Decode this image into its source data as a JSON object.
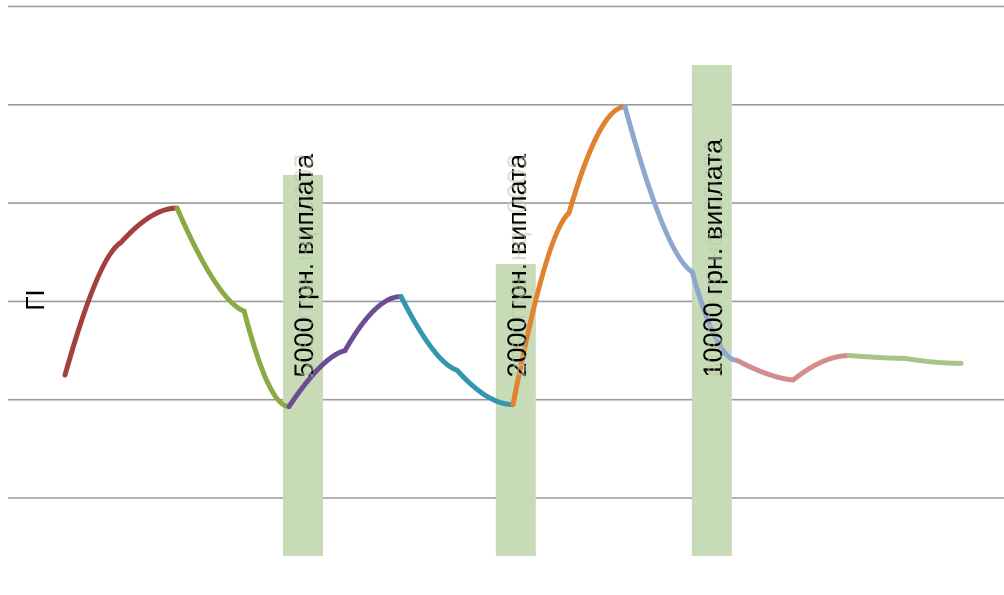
{
  "chart_data": {
    "type": "line",
    "title": "",
    "xlabel": "",
    "ylabel": "ГІ",
    "xlim": [
      0,
      8.5
    ],
    "ylim": [
      0,
      6
    ],
    "grid": true,
    "legend": "none",
    "gridline_color": "#9a9a9a",
    "segments": [
      {
        "color": "#a33f3c",
        "points": [
          [
            0,
            1.25
          ],
          [
            0.5,
            2.6
          ],
          [
            1,
            2.95
          ]
        ]
      },
      {
        "color": "#8aaa46",
        "points": [
          [
            1,
            2.95
          ],
          [
            1.6,
            1.9
          ],
          [
            2,
            0.93
          ]
        ]
      },
      {
        "color": "#6d4c94",
        "points": [
          [
            2,
            0.93
          ],
          [
            2.5,
            1.5
          ],
          [
            3,
            2.05
          ]
        ]
      },
      {
        "color": "#3296b0",
        "points": [
          [
            3,
            2.05
          ],
          [
            3.5,
            1.3
          ],
          [
            4,
            0.95
          ]
        ]
      },
      {
        "color": "#e0822f",
        "points": [
          [
            4,
            0.95
          ],
          [
            4.5,
            2.9
          ],
          [
            5,
            3.98
          ]
        ]
      },
      {
        "color": "#8ea7cf",
        "points": [
          [
            5,
            3.98
          ],
          [
            5.6,
            2.3
          ],
          [
            6,
            1.4
          ]
        ]
      },
      {
        "color": "#d38d8c",
        "points": [
          [
            6,
            1.4
          ],
          [
            6.5,
            1.2
          ],
          [
            7,
            1.45
          ]
        ]
      },
      {
        "color": "#a7c58a",
        "points": [
          [
            7,
            1.45
          ],
          [
            7.5,
            1.42
          ],
          [
            8,
            1.37
          ]
        ]
      }
    ],
    "annotations": [
      {
        "text": "5000 грн. виплата",
        "x": 2.0,
        "band_color": "#c8dbb7"
      },
      {
        "text": "2000 грн. виплата",
        "x": 3.9,
        "band_color": "#c8dbb7"
      },
      {
        "text": "10000 грн. виплата",
        "x": 5.65,
        "band_color": "#c8dbb7"
      }
    ]
  }
}
